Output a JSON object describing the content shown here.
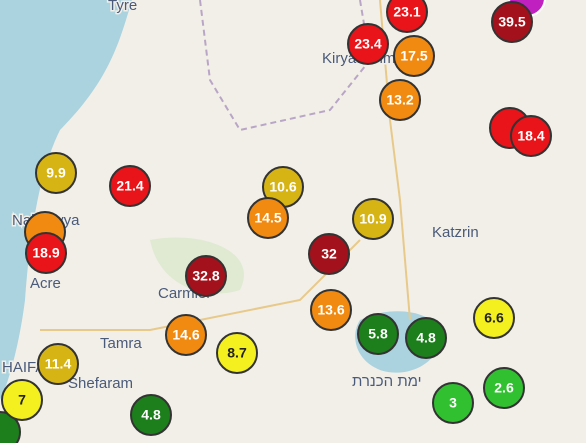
{
  "places": [
    "Tyre",
    "Kiryat Shmona",
    "Nahariyya",
    "Acre",
    "Carmiel",
    "Tamra",
    "Shefaram",
    "Katzrin",
    "ימת הכנרת",
    "HAIFA"
  ],
  "markers": [
    {
      "value": 23.1,
      "color": "#e8141a"
    },
    {
      "value": 39.5,
      "color": "#a3121c"
    },
    {
      "value": 23.4,
      "color": "#e8141a"
    },
    {
      "value": 17.5,
      "color": "#f08a10"
    },
    {
      "value": 13.2,
      "color": "#f08a10"
    },
    {
      "value": 18.4,
      "color": "#e8141a"
    },
    {
      "value": 9.9,
      "color": "#d6b414"
    },
    {
      "value": 21.4,
      "color": "#e8141a"
    },
    {
      "value": 10.6,
      "color": "#d6b414"
    },
    {
      "value": 14.5,
      "color": "#f08a10"
    },
    {
      "value": 10.9,
      "color": "#d6b414"
    },
    {
      "value": 18.9,
      "color": "#e8141a"
    },
    {
      "value": 32,
      "color": "#a3121c"
    },
    {
      "value": 32.8,
      "color": "#a3121c"
    },
    {
      "value": 13.6,
      "color": "#f08a10"
    },
    {
      "value": 5.8,
      "color": "#1c7f1c"
    },
    {
      "value": 4.8,
      "color": "#1c7f1c"
    },
    {
      "value": 6.6,
      "color": "#f4f020"
    },
    {
      "value": 14.6,
      "color": "#f08a10"
    },
    {
      "value": 8.7,
      "color": "#f4f020"
    },
    {
      "value": 11.4,
      "color": "#d6b414"
    },
    {
      "value": 7,
      "color": "#f4f020"
    },
    {
      "value": 4.8,
      "color": "#1c7f1c"
    },
    {
      "value": 3,
      "color": "#30c030"
    },
    {
      "value": 2.6,
      "color": "#30c030"
    }
  ]
}
